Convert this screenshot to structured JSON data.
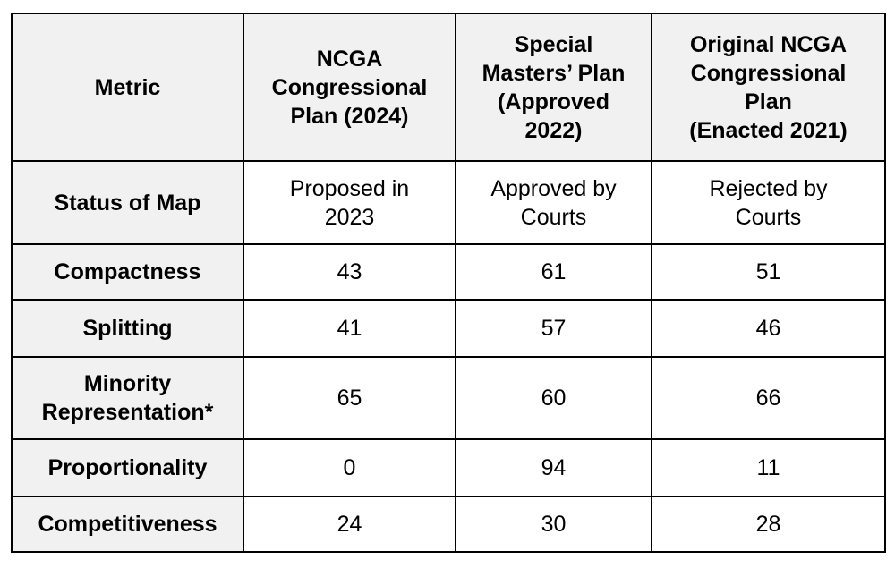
{
  "colors": {
    "header_fill": "#f1f1f1",
    "label_fill": "#f1f1f1",
    "data_fill": "#ffffff",
    "border": "#000000",
    "text": "#000000"
  },
  "chart_data": {
    "type": "table",
    "columns": [
      "Metric",
      "NCGA\nCongressional\nPlan (2024)",
      "Special\nMasters’ Plan\n(Approved\n2022)",
      "Original NCGA\nCongressional\nPlan\n(Enacted 2021)"
    ],
    "rows": [
      {
        "metric": "Status of Map",
        "values": [
          "Proposed in\n2023",
          "Approved by\nCourts",
          "Rejected by\nCourts"
        ]
      },
      {
        "metric": "Compactness",
        "values": [
          "43",
          "61",
          "51"
        ]
      },
      {
        "metric": "Splitting",
        "values": [
          "41",
          "57",
          "46"
        ]
      },
      {
        "metric": "Minority\nRepresentation*",
        "values": [
          "65",
          "60",
          "66"
        ]
      },
      {
        "metric": "Proportionality",
        "values": [
          "0",
          "94",
          "11"
        ]
      },
      {
        "metric": "Competitiveness",
        "values": [
          "24",
          "30",
          "28"
        ]
      }
    ]
  }
}
